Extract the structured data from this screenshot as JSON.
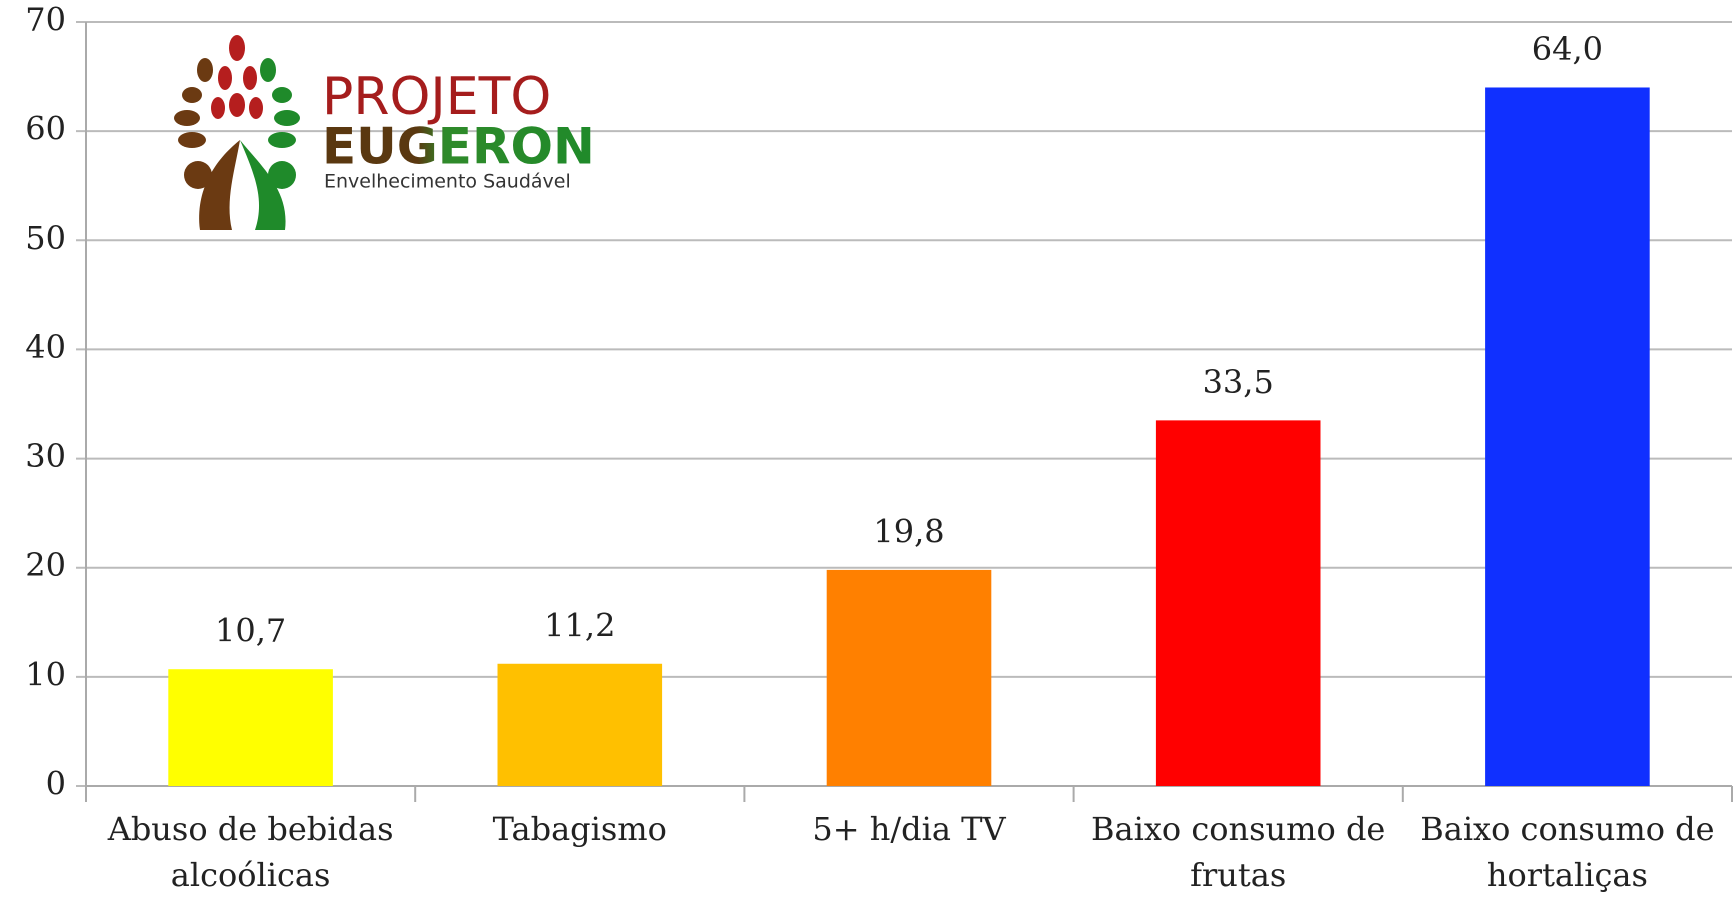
{
  "chart_data": {
    "type": "bar",
    "categories": [
      "Abuso de bebidas alcoólicas",
      "Tabagismo",
      "5+ h/dia TV",
      "Baixo consumo de frutas",
      "Baixo consumo de hortaliças"
    ],
    "values": [
      10.7,
      11.2,
      19.8,
      33.5,
      64.0
    ],
    "value_labels": [
      "10,7",
      "11,2",
      "19,8",
      "33,5",
      "64,0"
    ],
    "colors": [
      "#ffff00",
      "#ffc000",
      "#ff8000",
      "#ff0000",
      "#1030ff"
    ],
    "ylim": [
      0,
      70
    ],
    "yticks": [
      0,
      10,
      20,
      30,
      40,
      50,
      60,
      70
    ],
    "grid": true
  },
  "logo": {
    "line1": "PROJETO",
    "line2": "EUGERON",
    "tagline": "Envelhecimento Saudável"
  }
}
